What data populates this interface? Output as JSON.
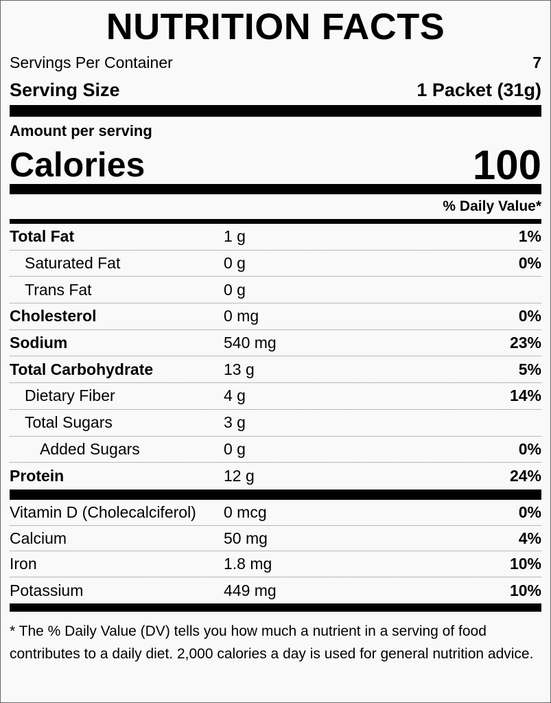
{
  "header": {
    "title": "NUTRITION FACTS",
    "servings_label": "Servings Per Container",
    "servings_value": "7",
    "serving_size_label": "Serving Size",
    "serving_size_value": "1 Packet (31g)"
  },
  "calories": {
    "heading": "Amount per serving",
    "label": "Calories",
    "value": "100"
  },
  "dv_header": "% Daily Value*",
  "nutrients": [
    {
      "name": "Total Fat",
      "amount": "1 g",
      "dv": "1%",
      "level": 0
    },
    {
      "name": "Saturated Fat",
      "amount": "0 g",
      "dv": "0%",
      "level": 1
    },
    {
      "name": "Trans Fat",
      "amount": "0 g",
      "level": 1
    },
    {
      "name": "Cholesterol",
      "amount": "0 mg",
      "dv": "0%",
      "level": 0
    },
    {
      "name": "Sodium",
      "amount": "540 mg",
      "dv": "23%",
      "level": 0
    },
    {
      "name": "Total Carbohydrate",
      "amount": "13 g",
      "dv": "5%",
      "level": 0
    },
    {
      "name": "Dietary Fiber",
      "amount": "4 g",
      "dv": "14%",
      "level": 1
    },
    {
      "name": "Total Sugars",
      "amount": "3 g",
      "level": 1
    },
    {
      "name": "Added Sugars",
      "amount": "0 g",
      "dv": "0%",
      "level": 2
    },
    {
      "name": "Protein",
      "amount": "12 g",
      "dv": "24%",
      "level": 0
    }
  ],
  "vitamins": [
    {
      "name": "Vitamin D (Cholecalciferol)",
      "amount": "0 mcg",
      "dv": "0%"
    },
    {
      "name": "Calcium",
      "amount": "50 mg",
      "dv": "4%"
    },
    {
      "name": "Iron",
      "amount": "1.8 mg",
      "dv": "10%"
    },
    {
      "name": "Potassium",
      "amount": "449 mg",
      "dv": "10%"
    }
  ],
  "footnote": "* The % Daily Value (DV) tells you how much a nutrient in a serving of food contributes to a daily diet. 2,000 calories a day is used for general nutrition advice."
}
